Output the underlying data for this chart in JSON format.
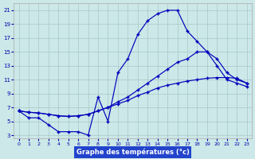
{
  "xlabel": "Graphe des températures (°c)",
  "bg_color": "#cce8e8",
  "grid_color": "#a8c8c8",
  "line_color": "#0000bb",
  "xlabel_bg": "#2244cc",
  "hours": [
    0,
    1,
    2,
    3,
    4,
    5,
    6,
    7,
    8,
    9,
    10,
    11,
    12,
    13,
    14,
    15,
    16,
    17,
    18,
    19,
    20,
    21,
    22,
    23
  ],
  "curve1": [
    6.5,
    5.5,
    5.5,
    4.5,
    3.5,
    3.5,
    3.5,
    3.0,
    8.5,
    5.0,
    12.0,
    14.0,
    17.5,
    19.5,
    20.5,
    21.0,
    21.0,
    18.0,
    16.5,
    15.0,
    13.0,
    11.0,
    10.5,
    10.0
  ],
  "curve2": [
    6.5,
    6.3,
    6.2,
    6.0,
    5.8,
    5.7,
    5.8,
    6.0,
    6.5,
    7.0,
    7.8,
    8.5,
    9.5,
    10.5,
    11.5,
    12.5,
    13.5,
    14.0,
    15.0,
    15.0,
    14.0,
    12.0,
    11.0,
    10.5
  ],
  "curve3": [
    6.5,
    6.3,
    6.2,
    6.0,
    5.8,
    5.7,
    5.8,
    6.0,
    6.5,
    7.0,
    7.5,
    8.0,
    8.7,
    9.2,
    9.8,
    10.2,
    10.5,
    10.8,
    11.0,
    11.2,
    11.3,
    11.3,
    11.2,
    10.5
  ],
  "ylim": [
    2.5,
    22
  ],
  "yticks": [
    3,
    5,
    7,
    9,
    11,
    13,
    15,
    17,
    19,
    21
  ],
  "xticks": [
    0,
    1,
    2,
    3,
    4,
    5,
    6,
    7,
    8,
    9,
    10,
    11,
    12,
    13,
    14,
    15,
    16,
    17,
    18,
    19,
    20,
    21,
    22,
    23
  ]
}
